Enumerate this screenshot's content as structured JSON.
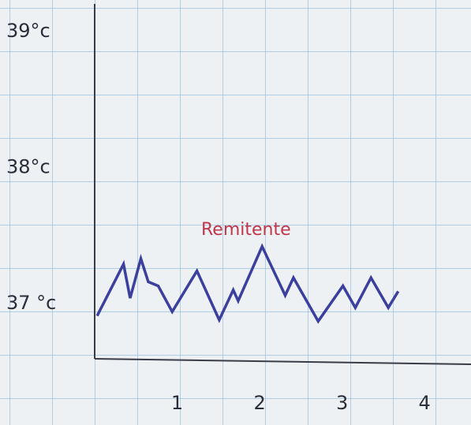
{
  "chart_data": {
    "type": "line",
    "annotation": "Remitente",
    "x": [
      0.03,
      0.35,
      0.43,
      0.56,
      0.65,
      0.77,
      0.94,
      1.24,
      1.51,
      1.68,
      1.74,
      2.03,
      2.31,
      2.41,
      2.71,
      3.01,
      3.16,
      3.35,
      3.56,
      3.68
    ],
    "series": [
      {
        "color": "#3b3f9e",
        "values": [
          36.91,
          37.29,
          37.04,
          37.33,
          37.16,
          37.13,
          36.94,
          37.24,
          36.88,
          37.1,
          37.02,
          37.42,
          37.06,
          37.19,
          36.87,
          37.13,
          36.97,
          37.19,
          36.97,
          37.09
        ]
      }
    ],
    "xlim": [
      0,
      4.4
    ],
    "xticks": [
      1,
      2,
      3,
      4
    ],
    "ylim": [
      36.6,
      39.2
    ],
    "yticks": [
      {
        "value": 37,
        "label": "37 °c"
      },
      {
        "value": 38,
        "label": "38°c"
      },
      {
        "value": 39,
        "label": "39°c"
      }
    ]
  }
}
